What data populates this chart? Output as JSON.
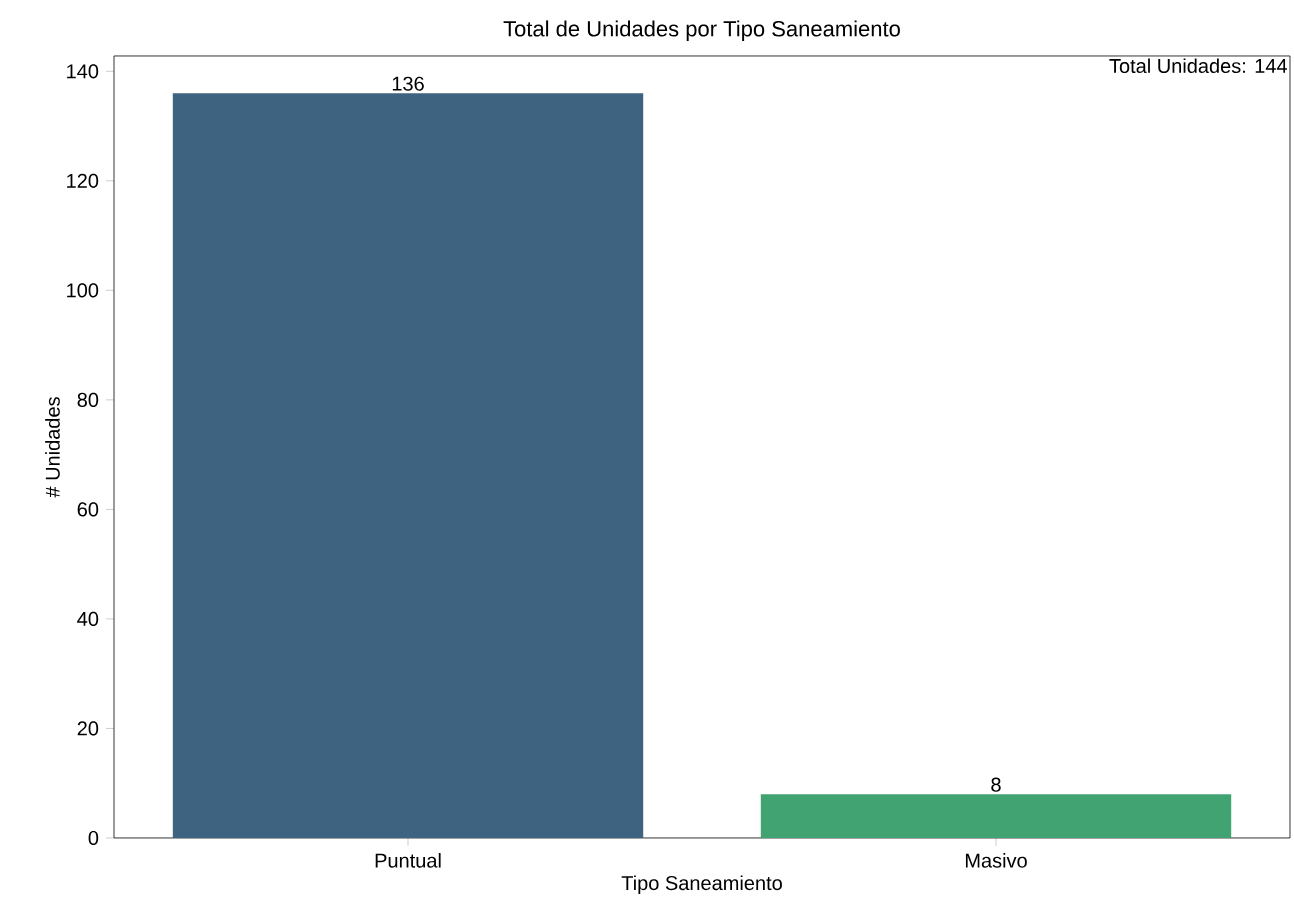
{
  "chart_data": {
    "type": "bar",
    "title": "Total de Unidades por Tipo Saneamiento",
    "xlabel": "Tipo Saneamiento",
    "ylabel": "# Unidades",
    "categories": [
      "Puntual",
      "Masivo"
    ],
    "values": [
      136,
      8
    ],
    "colors": [
      "#3e6380",
      "#42a372"
    ],
    "ylim": [
      0,
      142.8
    ],
    "yticks": [
      0,
      20,
      40,
      60,
      80,
      100,
      120,
      140
    ],
    "data_labels": true,
    "grid": false,
    "annotations": [
      "Total Unidades: 144"
    ]
  }
}
